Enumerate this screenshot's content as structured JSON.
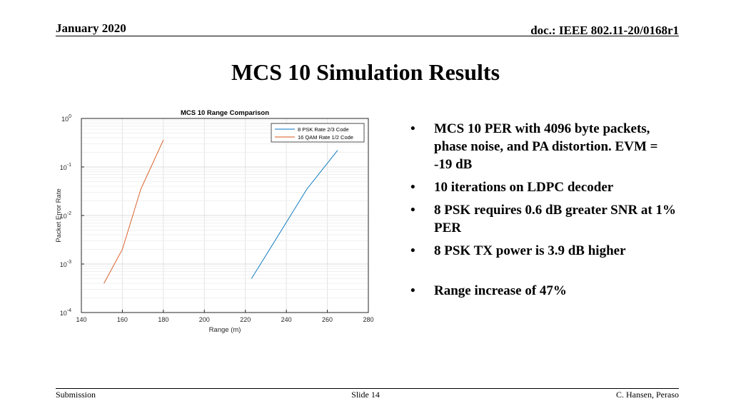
{
  "header": {
    "date": "January 2020",
    "doc": "doc.: IEEE 802.11-20/0168r1"
  },
  "slide_title": "MCS 10 Simulation Results",
  "bullets": [
    "MCS 10 PER with 4096 byte packets, phase noise, and PA distortion. EVM = -19 dB",
    "10 iterations on LDPC decoder",
    "8 PSK requires 0.6 dB greater SNR at 1% PER",
    "8 PSK TX power is 3.9 dB higher",
    "Range increase of 47%"
  ],
  "footer": {
    "left": "Submission",
    "center": "Slide 14",
    "right": "C. Hansen, Peraso"
  },
  "colors": {
    "series1": "#0072BD",
    "series2": "#D95319"
  },
  "chart_data": {
    "type": "line",
    "title": "MCS 10 Range Comparison",
    "xlabel": "Range (m)",
    "ylabel": "Packet Error Rate",
    "xlim": [
      140,
      280
    ],
    "ylim": [
      0.0001,
      1
    ],
    "yscale": "log",
    "xticks": [
      "140",
      "160",
      "180",
      "200",
      "220",
      "240",
      "260",
      "280"
    ],
    "yticks": [
      {
        "value": 1,
        "base": "10",
        "exp": "0"
      },
      {
        "value": 0.1,
        "base": "10",
        "exp": "-1"
      },
      {
        "value": 0.01,
        "base": "10",
        "exp": "-2"
      },
      {
        "value": 0.001,
        "base": "10",
        "exp": "-3"
      },
      {
        "value": 0.0001,
        "base": "10",
        "exp": "-4"
      }
    ],
    "grid": true,
    "legend_position": "top-right",
    "series": [
      {
        "name": "8 PSK Rate 2/3 Code",
        "color": "#0072BD",
        "x": [
          223,
          250,
          265
        ],
        "y": [
          0.0005,
          0.035,
          0.22
        ]
      },
      {
        "name": "16 QAM Rate 1/2 Code",
        "color": "#D95319",
        "x": [
          151,
          160,
          169,
          180
        ],
        "y": [
          0.0004,
          0.002,
          0.035,
          0.36
        ]
      }
    ]
  }
}
